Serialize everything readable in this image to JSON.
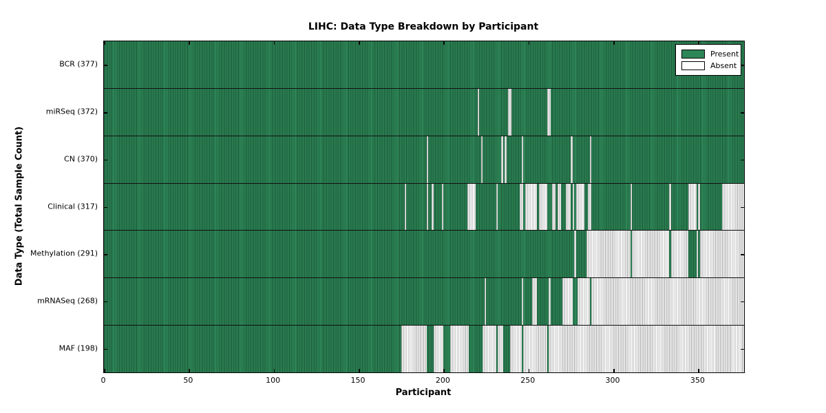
{
  "title": "LIHC: Data Type Breakdown by Participant",
  "xlabel": "Participant",
  "ylabel": "Data Type (Total Sample Count)",
  "legend": {
    "present_label": "Present",
    "absent_label": "Absent"
  },
  "colors": {
    "present_fill": "#2e8658",
    "present_line": "#195534",
    "absent_fill": "#f6f6f6",
    "absent_line": "#a8a8a8"
  },
  "chart_data": {
    "type": "heatmap",
    "subtype": "presence-absence-matrix",
    "title": "LIHC: Data Type Breakdown by Participant",
    "xlabel": "Participant",
    "ylabel": "Data Type (Total Sample Count)",
    "x_range": [
      0,
      377
    ],
    "x_ticks": [
      0,
      50,
      100,
      150,
      200,
      250,
      300,
      350
    ],
    "total_participants": 377,
    "legend_position": "upper right",
    "legend_entries": [
      "Present",
      "Absent"
    ],
    "rows": [
      {
        "name": "bcr",
        "label": "BCR (377)",
        "data_type": "BCR",
        "present_count": 377,
        "absent_ranges": []
      },
      {
        "name": "mirseq",
        "label": "miRSeq (372)",
        "data_type": "miRSeq",
        "present_count": 372,
        "absent_ranges": [
          [
            220,
            220
          ],
          [
            238,
            239
          ],
          [
            261,
            262
          ]
        ]
      },
      {
        "name": "cn",
        "label": "CN (370)",
        "data_type": "CN",
        "present_count": 370,
        "absent_ranges": [
          [
            190,
            190
          ],
          [
            222,
            222
          ],
          [
            234,
            234
          ],
          [
            236,
            236
          ],
          [
            246,
            246
          ],
          [
            275,
            275
          ],
          [
            286,
            286
          ]
        ]
      },
      {
        "name": "clinical",
        "label": "Clinical (317)",
        "data_type": "Clinical",
        "present_count": 317,
        "absent_ranges": [
          [
            177,
            177
          ],
          [
            190,
            190
          ],
          [
            193,
            193
          ],
          [
            199,
            199
          ],
          [
            214,
            218
          ],
          [
            231,
            231
          ],
          [
            245,
            246
          ],
          [
            248,
            254
          ],
          [
            256,
            260
          ],
          [
            264,
            265
          ],
          [
            267,
            268
          ],
          [
            272,
            274
          ],
          [
            276,
            276
          ],
          [
            278,
            282
          ],
          [
            285,
            286
          ],
          [
            310,
            310
          ],
          [
            333,
            333
          ],
          [
            344,
            348
          ],
          [
            350,
            350
          ],
          [
            364,
            376
          ]
        ]
      },
      {
        "name": "methylation",
        "label": "Methylation (291)",
        "data_type": "Methylation",
        "present_count": 291,
        "absent_ranges": [
          [
            277,
            277
          ],
          [
            284,
            309
          ],
          [
            311,
            332
          ],
          [
            334,
            343
          ],
          [
            349,
            349
          ],
          [
            351,
            376
          ]
        ]
      },
      {
        "name": "mrnaseq",
        "label": "mRNASeq (268)",
        "data_type": "mRNASeq",
        "present_count": 268,
        "absent_ranges": [
          [
            224,
            224
          ],
          [
            246,
            246
          ],
          [
            252,
            254
          ],
          [
            262,
            262
          ],
          [
            270,
            275
          ],
          [
            279,
            285
          ],
          [
            287,
            376
          ]
        ]
      },
      {
        "name": "maf",
        "label": "MAF (198)",
        "data_type": "MAF",
        "present_count": 198,
        "absent_ranges": [
          [
            175,
            189
          ],
          [
            194,
            199
          ],
          [
            204,
            214
          ],
          [
            223,
            230
          ],
          [
            232,
            234
          ],
          [
            239,
            245
          ],
          [
            247,
            260
          ],
          [
            262,
            376
          ]
        ]
      }
    ]
  }
}
